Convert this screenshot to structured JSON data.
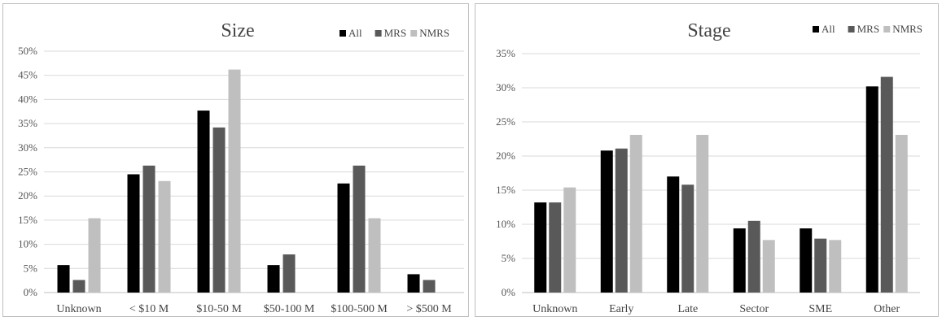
{
  "colors": {
    "All": "#000000",
    "MRS": "#595959",
    "NMRS": "#bfbfbf",
    "grid": "#d9d9d9"
  },
  "chart_data": [
    {
      "type": "bar",
      "title": "Size",
      "categories": [
        "Unknown",
        "< $10 M",
        "$10-50 M",
        "$50-100 M",
        "$100-500 M",
        "> $500 M"
      ],
      "series": [
        {
          "name": "All",
          "values": [
            5.7,
            24.5,
            37.7,
            5.7,
            22.6,
            3.8
          ]
        },
        {
          "name": "MRS",
          "values": [
            2.6,
            26.3,
            34.2,
            7.9,
            26.3,
            2.6
          ]
        },
        {
          "name": "NMRS",
          "values": [
            15.4,
            23.1,
            46.2,
            0,
            15.4,
            0
          ]
        }
      ],
      "ylim": [
        0,
        50
      ],
      "yticks": [
        "0%",
        "5%",
        "10%",
        "15%",
        "20%",
        "25%",
        "30%",
        "35%",
        "40%",
        "45%",
        "50%"
      ],
      "legend": "top-right",
      "grid": true
    },
    {
      "type": "bar",
      "title": "Stage",
      "categories": [
        "Unknown",
        "Early",
        "Late",
        "Sector",
        "SME",
        "Other"
      ],
      "series": [
        {
          "name": "All",
          "values": [
            13.2,
            20.8,
            17.0,
            9.4,
            9.4,
            30.2
          ]
        },
        {
          "name": "MRS",
          "values": [
            13.2,
            21.1,
            15.8,
            10.5,
            7.9,
            31.6
          ]
        },
        {
          "name": "NMRS",
          "values": [
            15.4,
            23.1,
            23.1,
            7.7,
            7.7,
            23.1
          ]
        }
      ],
      "ylim": [
        0,
        35
      ],
      "yticks": [
        "0%",
        "5%",
        "10%",
        "15%",
        "20%",
        "25%",
        "30%",
        "35%"
      ],
      "legend": "top-right",
      "grid": true
    }
  ]
}
